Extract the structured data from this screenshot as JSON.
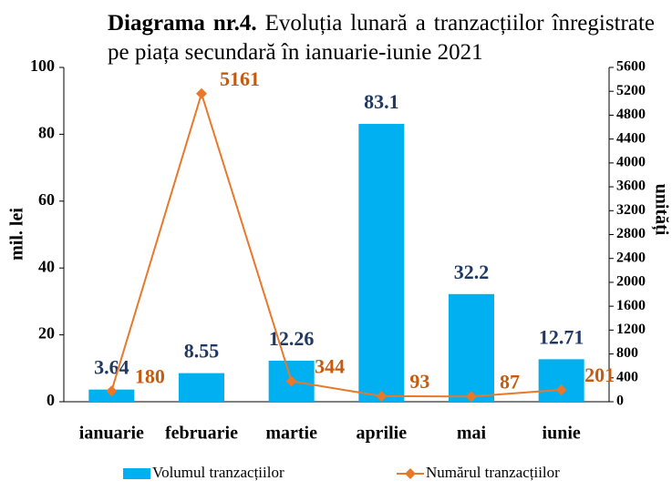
{
  "chart_data": {
    "type": "bar",
    "title_label": "Diagrama nr.4.",
    "title": "Evoluția lunară a tranzacțiilor înregistrate pe piața secundară în ianuarie-iunie  2021",
    "categories": [
      "ianuarie",
      "februarie",
      "martie",
      "aprilie",
      "mai",
      "iunie"
    ],
    "y_label": "mil. lei",
    "y2_label": "unități",
    "ylim": [
      0,
      100
    ],
    "yticks": [
      0,
      20,
      40,
      60,
      80,
      100
    ],
    "y2lim": [
      0,
      5600
    ],
    "y2ticks": [
      0,
      400,
      800,
      1200,
      1600,
      2000,
      2400,
      2800,
      3200,
      3600,
      4000,
      4400,
      4800,
      5200,
      5600
    ],
    "legend": "bottom",
    "series": [
      {
        "name": "Volumul tranzacțiilor",
        "type": "bar",
        "color": "#00b0f0",
        "label_color": "#1f3864",
        "values": [
          3.64,
          8.55,
          12.26,
          83.1,
          32.2,
          12.71
        ]
      },
      {
        "name": "Numărul tranzacțiilor",
        "type": "line",
        "axis": "y2",
        "color": "#e8782a",
        "label_color": "#c55a11",
        "values": [
          180,
          5161,
          344,
          93,
          87,
          201
        ]
      }
    ]
  }
}
